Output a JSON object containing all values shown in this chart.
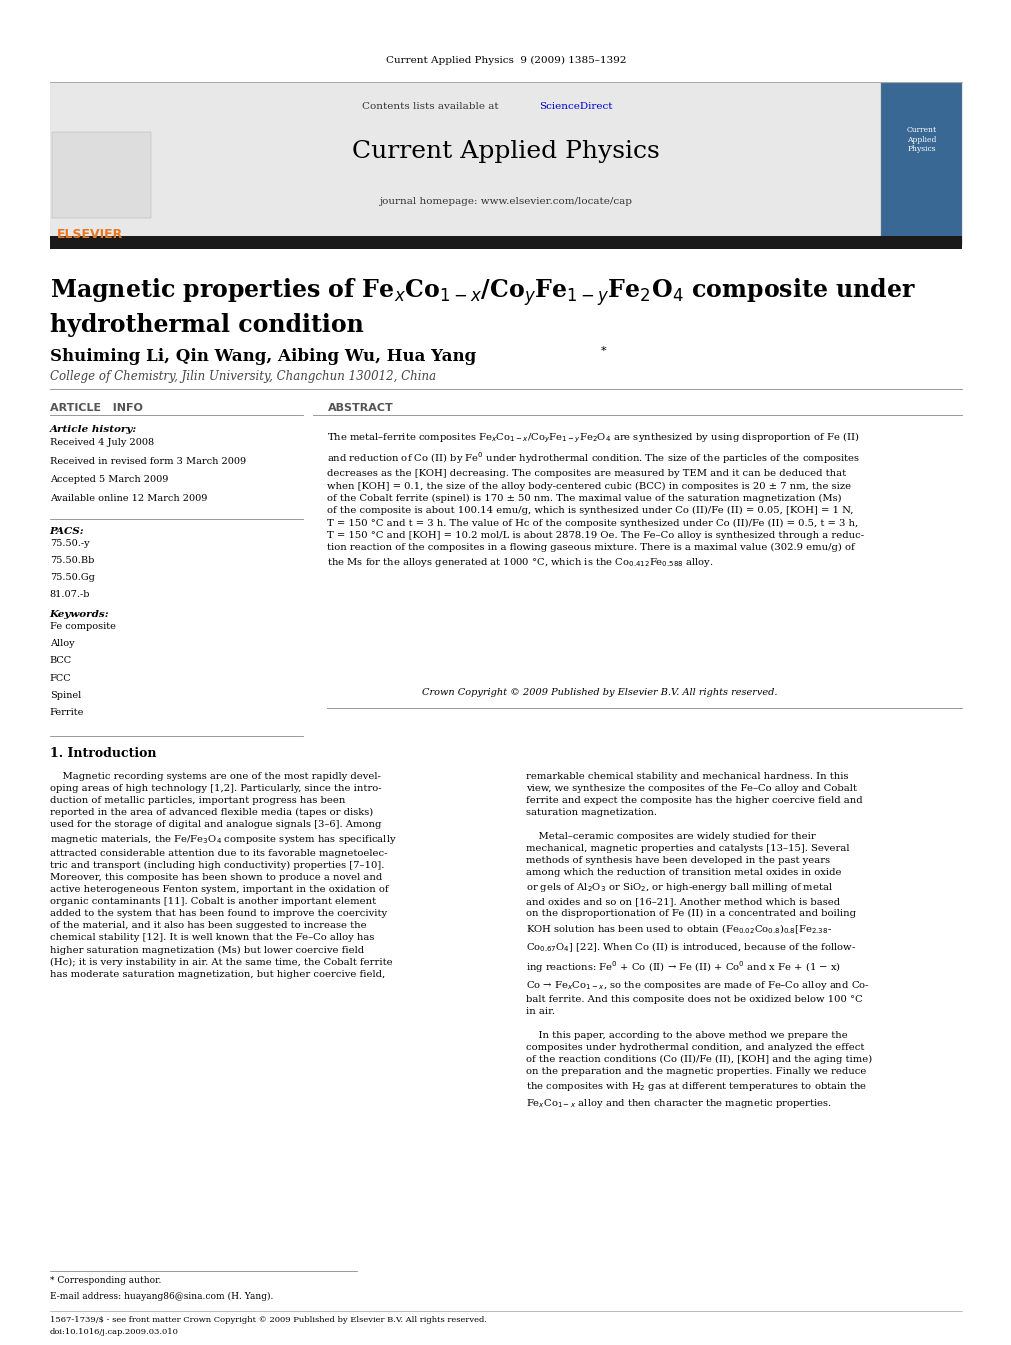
{
  "page_width": 9.92,
  "page_height": 13.23,
  "background_color": "#ffffff",
  "header_journal_ref": "Current Applied Physics  9 (2009) 1385–1392",
  "header_journal_ref_color": "#000000",
  "journal_name": "Current Applied Physics",
  "journal_homepage": "journal homepage: www.elsevier.com/locate/cap",
  "contents_text": "Contents lists available at",
  "sciencedirect_text": "ScienceDirect",
  "sciencedirect_color": "#0000cc",
  "header_bg": "#e8e8e8",
  "black_bar_color": "#1a1a1a",
  "title_color": "#000000",
  "title_fontsize": 17,
  "authors_color": "#000000",
  "authors_fontsize": 12,
  "affiliation_fontsize": 8.5,
  "section_article_info": "ARTICLE   INFO",
  "section_abstract": "ABSTRACT",
  "section_color": "#555555",
  "section_fontsize": 8,
  "article_history_label": "Article history:",
  "article_history_items": [
    "Received 4 July 2008",
    "Received in revised form 3 March 2009",
    "Accepted 5 March 2009",
    "Available online 12 March 2009"
  ],
  "pacs_label": "PACS:",
  "pacs_items": [
    "75.50.-y",
    "75.50.Bb",
    "75.50.Gg",
    "81.07.-b"
  ],
  "keywords_label": "Keywords:",
  "keywords_items": [
    "Fe composite",
    "Alloy",
    "BCC",
    "FCC",
    "Spinel",
    "Ferrite"
  ],
  "copyright_text": "Crown Copyright © 2009 Published by Elsevier B.V. All rights reserved.",
  "intro_section": "1. Introduction",
  "footnote_star": "* Corresponding author.",
  "footnote_email_label": "E-mail address:",
  "footnote_email": "huayang86@sina.com",
  "footnote_name": "(H. Yang).",
  "footer_line1": "1567-1739/$ - see front matter Crown Copyright © 2009 Published by Elsevier B.V. All rights reserved.",
  "footer_line2": "doi:10.1016/j.cap.2009.03.010",
  "elsevier_orange": "#e87722",
  "link_blue": "#1a5296"
}
